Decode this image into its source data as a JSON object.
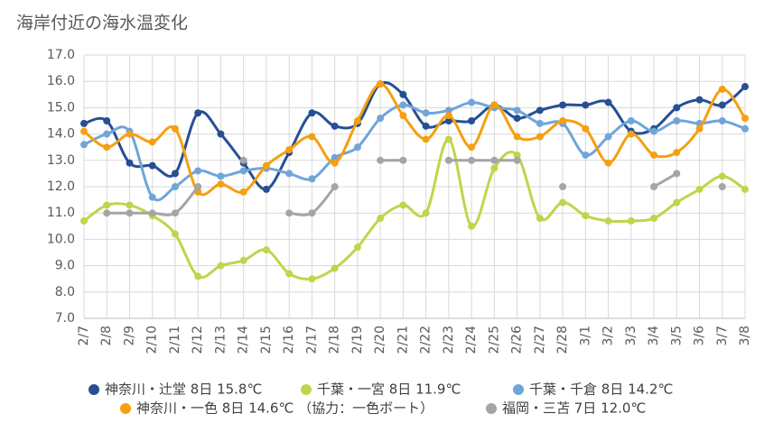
{
  "chart_data": {
    "type": "line",
    "title": "海岸付近の海水温変化",
    "categories": [
      "2/7",
      "2/8",
      "2/9",
      "2/10",
      "2/11",
      "2/12",
      "2/13",
      "2/14",
      "2/15",
      "2/16",
      "2/17",
      "2/18",
      "2/19",
      "2/20",
      "2/21",
      "2/22",
      "2/23",
      "2/24",
      "2/25",
      "2/26",
      "2/27",
      "2/28",
      "3/1",
      "3/2",
      "3/3",
      "3/4",
      "3/5",
      "3/6",
      "3/7",
      "3/8"
    ],
    "ylim": [
      7,
      17
    ],
    "yticks": [
      {
        "value": 7,
        "label": "7.0"
      },
      {
        "value": 8,
        "label": "8.0"
      },
      {
        "value": 9,
        "label": "9.0"
      },
      {
        "value": 10,
        "label": "10.0"
      },
      {
        "value": 11,
        "label": "11.0"
      },
      {
        "value": 12,
        "label": "12.0"
      },
      {
        "value": 13,
        "label": "13.0"
      },
      {
        "value": 14,
        "label": "14.0"
      },
      {
        "value": 15,
        "label": "15.0"
      },
      {
        "value": 16,
        "label": "16.0"
      },
      {
        "value": 17,
        "label": "17.0"
      }
    ],
    "grid": true,
    "legend": "bottom",
    "series": [
      {
        "name": "神奈川・辻堂 8日 15.8℃",
        "color": "#264f94",
        "values": [
          14.4,
          14.5,
          12.9,
          12.8,
          12.5,
          14.8,
          14.0,
          12.9,
          11.9,
          13.3,
          14.8,
          14.3,
          14.4,
          15.9,
          15.5,
          14.3,
          14.5,
          14.5,
          15.1,
          14.6,
          14.9,
          15.1,
          15.1,
          15.2,
          14.1,
          14.2,
          15.0,
          15.3,
          15.1,
          15.8
        ]
      },
      {
        "name": "千葉・一宮 8日 11.9℃",
        "color": "#c3d34b",
        "values": [
          10.7,
          11.3,
          11.3,
          10.9,
          10.2,
          8.6,
          9.0,
          9.2,
          9.6,
          8.7,
          8.5,
          8.9,
          9.7,
          10.8,
          11.3,
          11.0,
          13.8,
          10.5,
          12.7,
          13.2,
          10.8,
          11.4,
          10.9,
          10.7,
          10.7,
          10.8,
          11.4,
          11.9,
          12.4,
          11.9
        ]
      },
      {
        "name": "千葉・千倉 8日 14.2℃",
        "color": "#70a5da",
        "values": [
          13.6,
          14.0,
          14.1,
          11.6,
          12.0,
          12.6,
          12.4,
          12.6,
          12.7,
          12.5,
          12.3,
          13.1,
          13.5,
          14.6,
          15.1,
          14.8,
          14.9,
          15.2,
          15.0,
          14.9,
          14.4,
          14.4,
          13.2,
          13.9,
          14.5,
          14.1,
          14.5,
          14.4,
          14.5,
          14.2
        ]
      },
      {
        "name": "神奈川・一色 8日 14.6℃ （協力：一色ボート）",
        "color": "#f5a011",
        "values": [
          14.1,
          13.5,
          14.0,
          13.7,
          14.2,
          11.8,
          12.1,
          11.8,
          12.8,
          13.4,
          13.9,
          12.9,
          14.5,
          15.9,
          14.7,
          13.8,
          14.7,
          13.5,
          15.1,
          13.9,
          13.9,
          14.5,
          14.2,
          12.9,
          14.0,
          13.2,
          13.3,
          14.2,
          15.7,
          14.6
        ]
      },
      {
        "name": "福岡・三苫 7日 12.0℃",
        "color": "#a5a5a5",
        "values": [
          null,
          11.0,
          11.0,
          11.0,
          11.0,
          12.0,
          null,
          13.0,
          null,
          11.0,
          11.0,
          12.0,
          null,
          13.0,
          13.0,
          null,
          13.0,
          13.0,
          13.0,
          13.0,
          null,
          12.0,
          null,
          null,
          null,
          12.0,
          12.5,
          null,
          12.0,
          null
        ]
      }
    ]
  }
}
